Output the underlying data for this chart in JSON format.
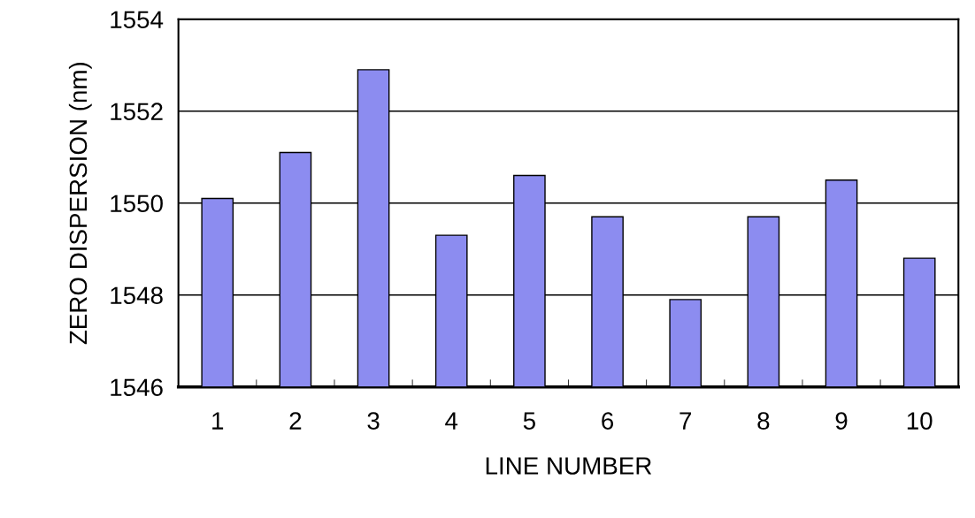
{
  "chart_data": {
    "type": "bar",
    "xlabel": "LINE NUMBER",
    "ylabel": "ZERO DISPERSION (nm)",
    "categories": [
      "1",
      "2",
      "3",
      "4",
      "5",
      "6",
      "7",
      "8",
      "9",
      "10"
    ],
    "values": [
      1550.1,
      1551.1,
      1552.9,
      1549.3,
      1550.6,
      1549.7,
      1547.9,
      1549.7,
      1550.5,
      1548.8
    ],
    "color": "#8c8cf0",
    "ylim": [
      1546,
      1554
    ],
    "yticks": [
      1546,
      1548,
      1550,
      1552,
      1554
    ],
    "grid": "y"
  }
}
